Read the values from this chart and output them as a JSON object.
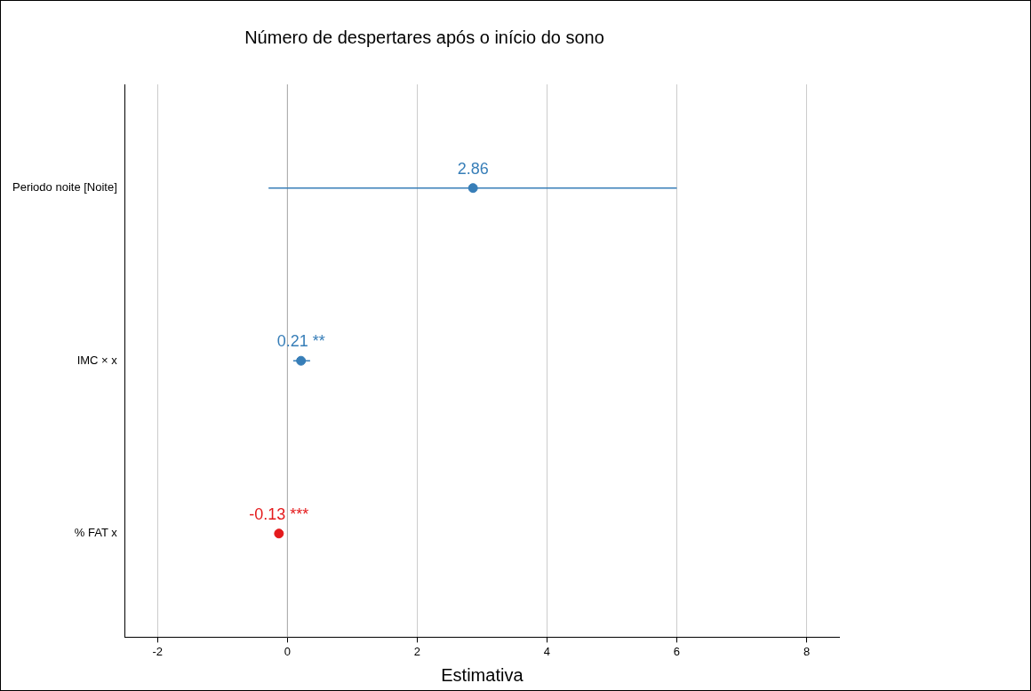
{
  "chart_data": {
    "type": "scatter",
    "orientation": "horizontal",
    "title": "Número de despertares após o início do sono",
    "xlabel": "Estimativa",
    "categories": [
      "Periodo noite [Noite]",
      "IMC × x",
      "% FAT x"
    ],
    "values": [
      2.86,
      0.21,
      -0.13
    ],
    "errors": [
      [
        -0.29,
        6.0
      ],
      [
        0.09,
        0.35
      ],
      null
    ],
    "colors": [
      "#377eb8",
      "#377eb8",
      "#e41a1c"
    ],
    "value_labels": [
      "2.86",
      "0.21 **",
      "-0.13 ***"
    ],
    "xlim": [
      -2.5,
      8.5
    ],
    "xticks": [
      -2,
      0,
      2,
      4,
      6,
      8
    ],
    "ref_lines": [
      {
        "axis": "x",
        "value": 0,
        "color": "#aaaaaa"
      }
    ],
    "grid": "x",
    "marker": "circle",
    "legend": false
  }
}
